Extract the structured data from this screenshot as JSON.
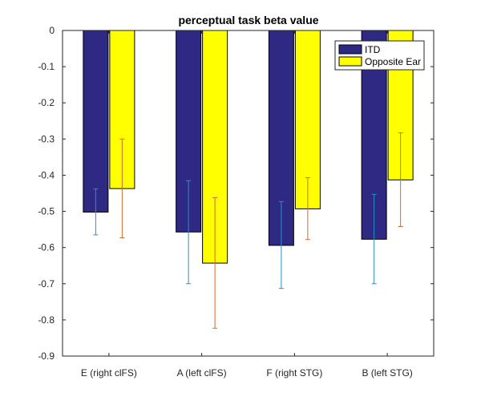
{
  "chart_data": {
    "type": "bar",
    "title": "perceptual task beta value",
    "xlabel": "",
    "ylabel": "",
    "categories": [
      "E (right clFS)",
      "A (left clFS)",
      "F (right STG)",
      "B (left STG)"
    ],
    "ylim": [
      -0.9,
      0
    ],
    "yticks": [
      0,
      -0.1,
      -0.2,
      -0.3,
      -0.4,
      -0.5,
      -0.6,
      -0.7,
      -0.8,
      -0.9
    ],
    "ytick_labels": [
      "0",
      "-0.1",
      "-0.2",
      "-0.3",
      "-0.4",
      "-0.5",
      "-0.6",
      "-0.7",
      "-0.8",
      "-0.9"
    ],
    "grid": false,
    "legend_position": "top-right",
    "series": [
      {
        "name": "ITD",
        "color": "#2e2a84",
        "values": [
          -0.502,
          -0.557,
          -0.594,
          -0.577
        ],
        "error_low": [
          -0.565,
          -0.7,
          -0.713,
          -0.7
        ],
        "error_high": [
          -0.438,
          -0.415,
          -0.473,
          -0.453
        ],
        "error_color": "#2a8fc8"
      },
      {
        "name": "Opposite Ear",
        "color": "#ffff00",
        "values": [
          -0.437,
          -0.643,
          -0.493,
          -0.413
        ],
        "error_low": [
          -0.573,
          -0.823,
          -0.578,
          -0.542
        ],
        "error_high": [
          -0.3,
          -0.462,
          -0.407,
          -0.283
        ],
        "error_color": "#d36a2e"
      }
    ]
  }
}
